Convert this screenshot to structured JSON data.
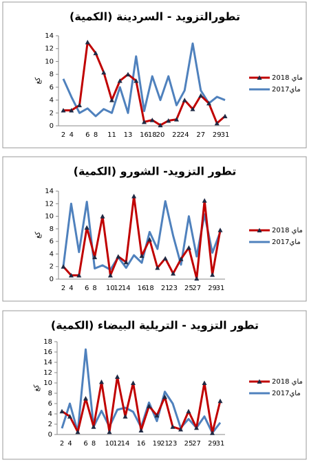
{
  "chart_data": [
    {
      "type": "line",
      "title": "تطورالتزويد - السردينة (الكمية)",
      "ylabel": "كغ",
      "categories": [
        2,
        4,
        null,
        6,
        8,
        null,
        11,
        null,
        13,
        null,
        16,
        18,
        20,
        null,
        22,
        24,
        null,
        27,
        null,
        29,
        31
      ],
      "series": [
        {
          "name": "ماي 2018",
          "color": "#c00000",
          "marker": "triangle",
          "values": [
            2.4,
            2.4,
            3.2,
            13,
            11.3,
            8.3,
            4,
            7,
            8,
            7,
            0.6,
            0.9,
            0.1,
            0.8,
            1,
            4,
            2.6,
            4.7,
            3.5,
            0.4,
            1.5
          ]
        },
        {
          "name": "ماي2017",
          "color": "#4f81bd",
          "marker": "none",
          "values": [
            7.3,
            4.5,
            2,
            2.7,
            1.5,
            2.6,
            2,
            6,
            2,
            10.8,
            2.3,
            7.7,
            4,
            7.7,
            3.2,
            5.5,
            12.8,
            5.5,
            3.5,
            4.5,
            4
          ]
        }
      ],
      "ylim": [
        0,
        14
      ],
      "yticks": [
        0,
        2,
        4,
        6,
        8,
        10,
        12,
        14
      ],
      "legend": "right"
    },
    {
      "type": "line",
      "title": "تطور التزويد- الشورو (الكمية)",
      "ylabel": "كغ",
      "categories": [
        2,
        4,
        null,
        6,
        8,
        null,
        10,
        12,
        14,
        null,
        16,
        18,
        null,
        21,
        23,
        null,
        25,
        27,
        null,
        29,
        31
      ],
      "series": [
        {
          "name": "ماي 2018",
          "color": "#c00000",
          "marker": "triangle",
          "values": [
            2,
            0.6,
            0.6,
            8.2,
            3.5,
            10,
            0.6,
            3.6,
            2.7,
            13.2,
            3.7,
            6.3,
            1.8,
            3.3,
            0.9,
            3.2,
            5,
            0.1,
            12.5,
            0.7,
            7.8
          ]
        },
        {
          "name": "ماي2017",
          "color": "#4f81bd",
          "marker": "none",
          "values": [
            2,
            12,
            4.3,
            12.3,
            1.7,
            2.2,
            1.5,
            3.5,
            1.8,
            3.8,
            2.6,
            7.5,
            4.8,
            12.4,
            6.9,
            2.3,
            10,
            3.6,
            10.3,
            4.2,
            7.5
          ]
        }
      ],
      "ylim": [
        0,
        14
      ],
      "yticks": [
        0,
        2,
        4,
        6,
        8,
        10,
        12,
        14
      ],
      "legend": "right"
    },
    {
      "type": "line",
      "title": "تطور التزويد - التريلية البيضاء (الكمية)",
      "ylabel": "كغ",
      "categories": [
        2,
        4,
        null,
        6,
        8,
        null,
        10,
        12,
        14,
        null,
        16,
        null,
        19,
        21,
        23,
        null,
        25,
        27,
        null,
        29,
        31
      ],
      "series": [
        {
          "name": "ماي 2018",
          "color": "#c00000",
          "marker": "triangle",
          "values": [
            4.5,
            3.5,
            0.5,
            7,
            1.5,
            10.2,
            0.5,
            11.2,
            3.5,
            10,
            0.8,
            5.5,
            3.7,
            7.3,
            1.5,
            1,
            4.5,
            1.3,
            10,
            0.3,
            6.5
          ]
        },
        {
          "name": "ماي2017",
          "color": "#4f81bd",
          "marker": "none",
          "values": [
            1.2,
            6,
            0.5,
            16.5,
            1.5,
            4.6,
            1.5,
            4.8,
            5.2,
            4.4,
            1.4,
            6.2,
            2.6,
            8.3,
            6,
            1.3,
            3,
            1.3,
            3.5,
            0.3,
            2.3
          ]
        }
      ],
      "ylim": [
        0,
        18
      ],
      "yticks": [
        0,
        2,
        4,
        6,
        8,
        10,
        12,
        14,
        16,
        18
      ],
      "legend": "right"
    }
  ]
}
